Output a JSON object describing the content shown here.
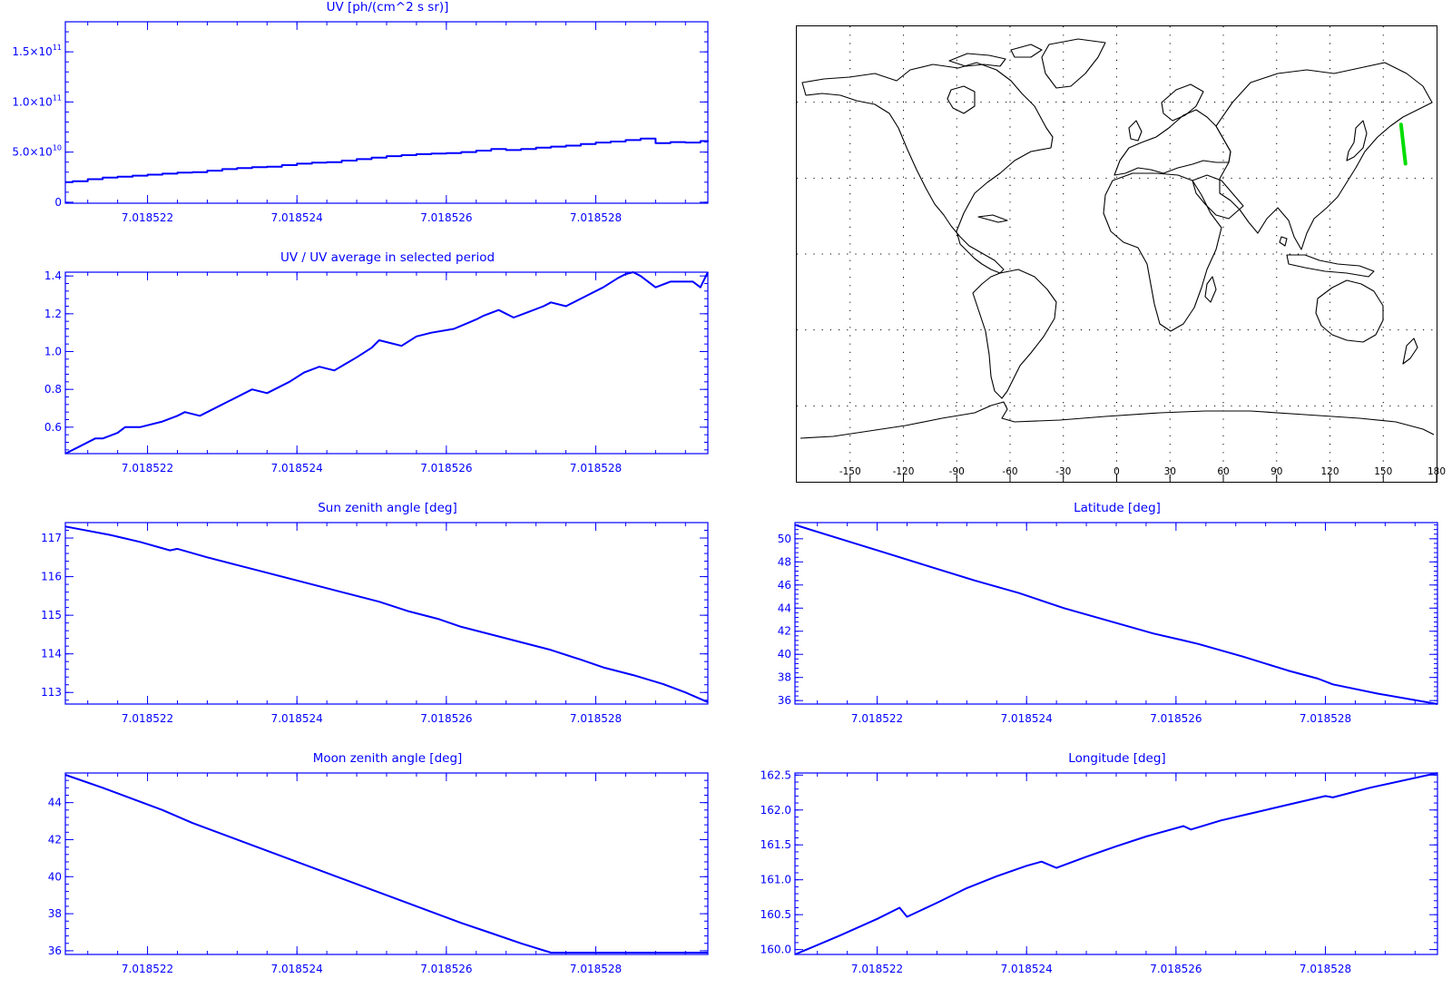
{
  "colors": {
    "axis": "#0000ff",
    "line": "#0000ff",
    "map_line": "#000000",
    "map_grid": "#000000",
    "track": "#00dd00"
  },
  "chart_data": [
    {
      "id": "uv",
      "type": "line",
      "title": "UV [ph/(cm^2 s sr)]",
      "step": true,
      "xlim": [
        7.0185209,
        7.0185295
      ],
      "ylim": [
        -1000000000.0,
        180000000000.0
      ],
      "xticks": [
        7.018522,
        7.018524,
        7.018526,
        7.018528
      ],
      "xtick_labels": [
        "7.018522",
        "7.018524",
        "7.018526",
        "7.018528"
      ],
      "yticks": [
        0,
        50000000000.0,
        100000000000.0,
        150000000000.0
      ],
      "ytick_labels": [
        {
          "mant": "0",
          "exp": ""
        },
        {
          "mant": "5.0×10",
          "exp": "10"
        },
        {
          "mant": "1.0×10",
          "exp": "11"
        },
        {
          "mant": "1.5×10",
          "exp": "11"
        }
      ],
      "x": [
        7.0185209,
        7.018521,
        7.0185212,
        7.0185214,
        7.0185216,
        7.0185218,
        7.018522,
        7.0185222,
        7.0185224,
        7.0185226,
        7.0185228,
        7.018523,
        7.0185232,
        7.0185234,
        7.0185236,
        7.0185238,
        7.018524,
        7.0185242,
        7.0185244,
        7.0185246,
        7.0185248,
        7.018525,
        7.0185252,
        7.0185254,
        7.0185256,
        7.0185258,
        7.018526,
        7.0185262,
        7.0185264,
        7.0185266,
        7.0185268,
        7.018527,
        7.0185272,
        7.0185274,
        7.0185276,
        7.0185278,
        7.018528,
        7.0185282,
        7.0185284,
        7.0185286,
        7.0185288,
        7.018529,
        7.0185292,
        7.0185294,
        7.0185295
      ],
      "y": [
        20000000000.0,
        21000000000.0,
        23000000000.0,
        24500000000.0,
        25500000000.0,
        26500000000.0,
        27500000000.0,
        28500000000.0,
        29500000000.0,
        30000000000.0,
        31500000000.0,
        33000000000.0,
        34000000000.0,
        35000000000.0,
        35500000000.0,
        37000000000.0,
        38500000000.0,
        39500000000.0,
        40000000000.0,
        41500000000.0,
        43000000000.0,
        44500000000.0,
        46000000000.0,
        47000000000.0,
        48000000000.0,
        48500000000.0,
        49000000000.0,
        50000000000.0,
        51500000000.0,
        53000000000.0,
        52000000000.0,
        53000000000.0,
        54500000000.0,
        55500000000.0,
        56500000000.0,
        58000000000.0,
        59500000000.0,
        60500000000.0,
        62000000000.0,
        63500000000.0,
        59000000000.0,
        60000000000.0,
        59500000000.0,
        61000000000.0,
        61500000000.0
      ]
    },
    {
      "id": "uv_ratio",
      "type": "line",
      "title": "UV / UV average in selected period",
      "step": false,
      "xlim": [
        7.0185209,
        7.0185295
      ],
      "ylim": [
        0.46,
        1.42
      ],
      "xticks": [
        7.018522,
        7.018524,
        7.018526,
        7.018528
      ],
      "xtick_labels": [
        "7.018522",
        "7.018524",
        "7.018526",
        "7.018528"
      ],
      "yticks": [
        0.6,
        0.8,
        1.0,
        1.2,
        1.4
      ],
      "ytick_labels": [
        {
          "mant": "0.6",
          "exp": ""
        },
        {
          "mant": "0.8",
          "exp": ""
        },
        {
          "mant": "1.0",
          "exp": ""
        },
        {
          "mant": "1.2",
          "exp": ""
        },
        {
          "mant": "1.4",
          "exp": ""
        }
      ],
      "x": [
        7.0185209,
        7.0185211,
        7.0185213,
        7.0185214,
        7.0185216,
        7.0185217,
        7.0185219,
        7.0185222,
        7.0185224,
        7.0185225,
        7.0185227,
        7.018523,
        7.0185233,
        7.0185234,
        7.0185236,
        7.0185239,
        7.0185241,
        7.0185243,
        7.0185245,
        7.0185248,
        7.018525,
        7.0185251,
        7.0185254,
        7.0185256,
        7.0185258,
        7.0185261,
        7.0185264,
        7.0185265,
        7.0185267,
        7.0185269,
        7.0185271,
        7.0185273,
        7.0185274,
        7.0185276,
        7.0185279,
        7.0185281,
        7.0185283,
        7.0185284,
        7.0185285,
        7.0185286,
        7.0185288,
        7.018529,
        7.0185293,
        7.0185294,
        7.0185295
      ],
      "y": [
        0.46,
        0.5,
        0.54,
        0.54,
        0.57,
        0.6,
        0.6,
        0.63,
        0.66,
        0.68,
        0.66,
        0.72,
        0.78,
        0.8,
        0.78,
        0.84,
        0.89,
        0.92,
        0.9,
        0.97,
        1.02,
        1.06,
        1.03,
        1.08,
        1.1,
        1.12,
        1.17,
        1.19,
        1.22,
        1.18,
        1.21,
        1.24,
        1.26,
        1.24,
        1.3,
        1.34,
        1.39,
        1.41,
        1.42,
        1.4,
        1.34,
        1.37,
        1.37,
        1.34,
        1.42
      ]
    },
    {
      "id": "sun_zenith",
      "type": "line",
      "title": "Sun zenith angle [deg]",
      "step": false,
      "xlim": [
        7.0185209,
        7.0185295
      ],
      "ylim": [
        112.7,
        117.4
      ],
      "xticks": [
        7.018522,
        7.018524,
        7.018526,
        7.018528
      ],
      "xtick_labels": [
        "7.018522",
        "7.018524",
        "7.018526",
        "7.018528"
      ],
      "yticks": [
        113,
        114,
        115,
        116,
        117
      ],
      "ytick_labels": [
        {
          "mant": "113",
          "exp": ""
        },
        {
          "mant": "114",
          "exp": ""
        },
        {
          "mant": "115",
          "exp": ""
        },
        {
          "mant": "116",
          "exp": ""
        },
        {
          "mant": "117",
          "exp": ""
        }
      ],
      "x": [
        7.0185209,
        7.0185215,
        7.0185219,
        7.0185223,
        7.0185224,
        7.0185228,
        7.0185232,
        7.0185236,
        7.018524,
        7.0185243,
        7.0185247,
        7.0185251,
        7.0185255,
        7.0185259,
        7.0185262,
        7.0185266,
        7.018527,
        7.0185274,
        7.0185278,
        7.0185281,
        7.0185285,
        7.0185289,
        7.0185292,
        7.0185295
      ],
      "y": [
        117.3,
        117.08,
        116.9,
        116.68,
        116.72,
        116.5,
        116.3,
        116.1,
        115.9,
        115.75,
        115.55,
        115.35,
        115.1,
        114.9,
        114.7,
        114.5,
        114.3,
        114.1,
        113.85,
        113.65,
        113.45,
        113.22,
        113.0,
        112.75
      ]
    },
    {
      "id": "latitude",
      "type": "line",
      "title": "Latitude [deg]",
      "step": false,
      "xlim": [
        7.0185209,
        7.0185295
      ],
      "ylim": [
        35.7,
        51.4
      ],
      "xticks": [
        7.018522,
        7.018524,
        7.018526,
        7.018528
      ],
      "xtick_labels": [
        "7.018522",
        "7.018524",
        "7.018526",
        "7.018528"
      ],
      "yticks": [
        36,
        38,
        40,
        42,
        44,
        46,
        48,
        50
      ],
      "ytick_labels": [
        {
          "mant": "36",
          "exp": ""
        },
        {
          "mant": "38",
          "exp": ""
        },
        {
          "mant": "40",
          "exp": ""
        },
        {
          "mant": "42",
          "exp": ""
        },
        {
          "mant": "44",
          "exp": ""
        },
        {
          "mant": "46",
          "exp": ""
        },
        {
          "mant": "48",
          "exp": ""
        },
        {
          "mant": "50",
          "exp": ""
        }
      ],
      "x": [
        7.0185209,
        7.0185215,
        7.0185221,
        7.0185227,
        7.0185233,
        7.0185239,
        7.0185245,
        7.0185251,
        7.0185257,
        7.0185261,
        7.0185263,
        7.0185269,
        7.0185275,
        7.0185279,
        7.0185281,
        7.0185287,
        7.0185295
      ],
      "y": [
        51.2,
        50.0,
        48.8,
        47.6,
        46.4,
        45.3,
        44.0,
        42.9,
        41.8,
        41.2,
        40.9,
        39.8,
        38.6,
        37.9,
        37.4,
        36.6,
        35.7
      ]
    },
    {
      "id": "moon_zenith",
      "type": "line",
      "title": "Moon zenith angle [deg]",
      "step": false,
      "xlim": [
        7.0185209,
        7.0185295
      ],
      "ylim": [
        35.8,
        45.6
      ],
      "xticks": [
        7.018522,
        7.018524,
        7.018526,
        7.018528
      ],
      "xtick_labels": [
        "7.018522",
        "7.018524",
        "7.018526",
        "7.018528"
      ],
      "yticks": [
        36,
        38,
        40,
        42,
        44
      ],
      "ytick_labels": [
        {
          "mant": "36",
          "exp": ""
        },
        {
          "mant": "38",
          "exp": ""
        },
        {
          "mant": "40",
          "exp": ""
        },
        {
          "mant": "42",
          "exp": ""
        },
        {
          "mant": "44",
          "exp": ""
        }
      ],
      "x": [
        7.0185209,
        7.0185214,
        7.0185218,
        7.0185222,
        7.0185226,
        7.018523,
        7.0185234,
        7.0185238,
        7.0185242,
        7.0185246,
        7.018525,
        7.0185254,
        7.0185258,
        7.0185262,
        7.0185266,
        7.018527,
        7.0185274,
        7.0185278,
        7.0185282,
        7.0185286,
        7.018529,
        7.0185295
      ],
      "y": [
        45.5,
        44.8,
        44.2,
        43.6,
        42.9,
        42.3,
        41.7,
        41.1,
        40.5,
        39.9,
        39.3,
        38.7,
        38.1,
        37.5,
        36.95,
        36.4,
        35.9,
        35.9,
        35.9,
        35.9,
        35.9,
        35.9
      ]
    },
    {
      "id": "longitude",
      "type": "line",
      "title": "Longitude [deg]",
      "step": false,
      "xlim": [
        7.0185209,
        7.0185295
      ],
      "ylim": [
        159.93,
        162.53
      ],
      "xticks": [
        7.018522,
        7.018524,
        7.018526,
        7.018528
      ],
      "xtick_labels": [
        "7.018522",
        "7.018524",
        "7.018526",
        "7.018528"
      ],
      "yticks": [
        160.0,
        160.5,
        161.0,
        161.5,
        162.0,
        162.5
      ],
      "ytick_labels": [
        {
          "mant": "160.0",
          "exp": ""
        },
        {
          "mant": "160.5",
          "exp": ""
        },
        {
          "mant": "161.0",
          "exp": ""
        },
        {
          "mant": "161.5",
          "exp": ""
        },
        {
          "mant": "162.0",
          "exp": ""
        },
        {
          "mant": "162.5",
          "exp": ""
        }
      ],
      "x": [
        7.0185209,
        7.0185215,
        7.018522,
        7.0185223,
        7.0185224,
        7.0185228,
        7.0185232,
        7.0185236,
        7.018524,
        7.0185242,
        7.0185244,
        7.0185248,
        7.0185252,
        7.0185256,
        7.0185261,
        7.0185262,
        7.0185266,
        7.018527,
        7.0185274,
        7.018528,
        7.0185281,
        7.0185286,
        7.0185295
      ],
      "y": [
        159.93,
        160.2,
        160.44,
        160.6,
        160.47,
        160.67,
        160.88,
        161.05,
        161.2,
        161.26,
        161.17,
        161.33,
        161.48,
        161.62,
        161.77,
        161.72,
        161.85,
        161.95,
        162.05,
        162.2,
        162.18,
        162.32,
        162.53
      ]
    }
  ],
  "map": {
    "lon_range": [
      -180,
      180
    ],
    "lat_range": [
      -90,
      90
    ],
    "lon_ticks": [
      -150,
      -120,
      -90,
      -60,
      -30,
      0,
      30,
      60,
      90,
      120,
      150,
      180
    ],
    "lon_labels": [
      "-150",
      "-120",
      "-90",
      "-60",
      "-30",
      "0",
      "30",
      "60",
      "90",
      "120",
      "150",
      "180"
    ],
    "lat_grid": [
      -60,
      -30,
      0,
      30,
      60
    ],
    "track": {
      "lon": [
        160.0,
        162.5
      ],
      "lat": [
        51.2,
        35.7
      ]
    }
  }
}
